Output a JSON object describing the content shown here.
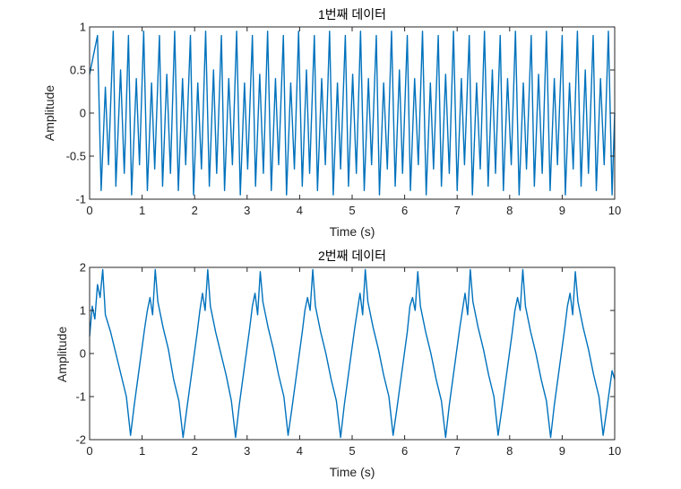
{
  "chart_data": [
    {
      "type": "line",
      "title": "1번째 데이터",
      "xlabel": "Time (s)",
      "ylabel": "Amplitude",
      "xlim": [
        0,
        10
      ],
      "ylim": [
        -1,
        1
      ],
      "xticks": [
        0,
        1,
        2,
        3,
        4,
        5,
        6,
        7,
        8,
        9,
        10
      ],
      "yticks": [
        -1,
        -0.5,
        0,
        0.5,
        1
      ],
      "ytick_labels": [
        "-1",
        "-0.5",
        "0",
        "0.5",
        "1"
      ],
      "grid": false,
      "legend": "none",
      "series": [
        {
          "color": "#0072BD",
          "description": "noisy sawtooth-like oscillation, ~1.7 cycles per second, clipped to [-1, 1]",
          "x": [
            0,
            0.15,
            0.22,
            0.3,
            0.36,
            0.45,
            0.5,
            0.59,
            0.66,
            0.74,
            0.8,
            0.89,
            0.95,
            1.03,
            1.1,
            1.18,
            1.24,
            1.33,
            1.39,
            1.47,
            1.54,
            1.62,
            1.69,
            1.77,
            1.83,
            1.92,
            1.98,
            2.06,
            2.13,
            2.21,
            2.28,
            2.36,
            2.42,
            2.51,
            2.57,
            2.65,
            2.72,
            2.8,
            2.87,
            2.95,
            3.01,
            3.1,
            3.16,
            3.24,
            3.31,
            3.39,
            3.46,
            3.54,
            3.6,
            3.69,
            3.75,
            3.83,
            3.9,
            3.98,
            4.05,
            4.13,
            4.19,
            4.28,
            4.34,
            4.42,
            4.49,
            4.57,
            4.64,
            4.72,
            4.78,
            4.87,
            4.93,
            5.01,
            5.08,
            5.16,
            5.23,
            5.31,
            5.37,
            5.46,
            5.52,
            5.6,
            5.67,
            5.75,
            5.82,
            5.9,
            5.96,
            6.05,
            6.11,
            6.19,
            6.26,
            6.34,
            6.41,
            6.49,
            6.55,
            6.64,
            6.7,
            6.78,
            6.85,
            6.93,
            7.0,
            7.08,
            7.14,
            7.23,
            7.29,
            7.37,
            7.44,
            7.52,
            7.59,
            7.67,
            7.73,
            7.82,
            7.88,
            7.96,
            8.03,
            8.11,
            8.18,
            8.26,
            8.32,
            8.41,
            8.47,
            8.55,
            8.62,
            8.7,
            8.77,
            8.85,
            8.91,
            9.0,
            9.06,
            9.14,
            9.21,
            9.29,
            9.36,
            9.44,
            9.5,
            9.59,
            9.65,
            9.73,
            9.8,
            9.88,
            9.95,
            10
          ],
          "y": [
            0.45,
            0.9,
            -0.9,
            0.3,
            -0.6,
            0.95,
            -0.85,
            0.5,
            -0.7,
            0.9,
            -0.95,
            0.4,
            -0.6,
            0.95,
            -0.9,
            0.35,
            -0.65,
            0.9,
            -0.85,
            0.45,
            -0.7,
            0.95,
            -0.9,
            0.4,
            -0.6,
            0.9,
            -0.95,
            0.35,
            -0.65,
            0.95,
            -0.85,
            0.5,
            -0.7,
            0.9,
            -0.9,
            0.4,
            -0.6,
            0.95,
            -0.95,
            0.35,
            -0.65,
            0.9,
            -0.85,
            0.45,
            -0.7,
            0.95,
            -0.9,
            0.4,
            -0.6,
            0.9,
            -0.95,
            0.35,
            -0.65,
            0.95,
            -0.85,
            0.5,
            -0.7,
            0.9,
            -0.9,
            0.4,
            -0.6,
            0.95,
            -0.95,
            0.35,
            -0.65,
            0.9,
            -0.85,
            0.45,
            -0.7,
            0.95,
            -0.9,
            0.4,
            -0.6,
            0.9,
            -0.95,
            0.35,
            -0.65,
            0.95,
            -0.85,
            0.5,
            -0.7,
            0.9,
            -0.9,
            0.4,
            -0.6,
            0.95,
            -0.95,
            0.35,
            -0.65,
            0.9,
            -0.85,
            0.45,
            -0.7,
            0.95,
            -0.9,
            0.4,
            -0.6,
            0.9,
            -0.95,
            0.35,
            -0.65,
            0.95,
            -0.85,
            0.5,
            -0.7,
            0.9,
            -0.9,
            0.4,
            -0.6,
            0.95,
            -0.95,
            0.35,
            -0.65,
            0.9,
            -0.85,
            0.45,
            -0.7,
            0.95,
            -0.9,
            0.4,
            -0.6,
            0.9,
            -0.95,
            0.35,
            -0.65,
            0.95,
            -0.85,
            0.5,
            -0.7,
            0.9,
            -0.9,
            0.4,
            -0.6,
            0.95,
            -0.95,
            0.0
          ]
        }
      ]
    },
    {
      "type": "line",
      "title": "2번째 데이터",
      "xlabel": "Time (s)",
      "ylabel": "Amplitude",
      "xlim": [
        0,
        10
      ],
      "ylim": [
        -2,
        2
      ],
      "xticks": [
        0,
        1,
        2,
        3,
        4,
        5,
        6,
        7,
        8,
        9,
        10
      ],
      "yticks": [
        -2,
        -1,
        0,
        1,
        2
      ],
      "ytick_labels": [
        "-2",
        "-1",
        "0",
        "1",
        "2"
      ],
      "grid": false,
      "legend": "none",
      "series": [
        {
          "color": "#0072BD",
          "description": "noisy sawtooth wave, period 1 s, peak near +2 at ~0.25 s, trough near -2 at ~0.8 s",
          "x": [
            0,
            0.05,
            0.1,
            0.15,
            0.2,
            0.25,
            0.3,
            0.4,
            0.5,
            0.6,
            0.7,
            0.78,
            0.85,
            0.95,
            1.05,
            1.1,
            1.15,
            1.2,
            1.25,
            1.3,
            1.4,
            1.5,
            1.6,
            1.7,
            1.78,
            1.85,
            1.95,
            2.05,
            2.1,
            2.15,
            2.2,
            2.25,
            2.3,
            2.4,
            2.5,
            2.6,
            2.7,
            2.78,
            2.85,
            2.95,
            3.05,
            3.1,
            3.15,
            3.2,
            3.25,
            3.3,
            3.4,
            3.5,
            3.6,
            3.7,
            3.78,
            3.85,
            3.95,
            4.05,
            4.1,
            4.15,
            4.2,
            4.25,
            4.3,
            4.4,
            4.5,
            4.6,
            4.7,
            4.78,
            4.85,
            4.95,
            5.05,
            5.1,
            5.15,
            5.2,
            5.25,
            5.3,
            5.4,
            5.5,
            5.6,
            5.7,
            5.78,
            5.85,
            5.95,
            6.05,
            6.1,
            6.15,
            6.2,
            6.25,
            6.3,
            6.4,
            6.5,
            6.6,
            6.7,
            6.78,
            6.85,
            6.95,
            7.05,
            7.1,
            7.15,
            7.2,
            7.25,
            7.3,
            7.4,
            7.5,
            7.6,
            7.7,
            7.78,
            7.85,
            7.95,
            8.05,
            8.1,
            8.15,
            8.2,
            8.25,
            8.3,
            8.4,
            8.5,
            8.6,
            8.7,
            8.78,
            8.85,
            8.95,
            9.05,
            9.1,
            9.15,
            9.2,
            9.25,
            9.3,
            9.4,
            9.5,
            9.6,
            9.7,
            9.78,
            9.85,
            9.95,
            10
          ],
          "y": [
            0.4,
            1.1,
            0.8,
            1.6,
            1.3,
            1.95,
            0.9,
            0.5,
            0.0,
            -0.5,
            -1.0,
            -1.9,
            -1.2,
            -0.3,
            0.6,
            1.0,
            1.3,
            0.9,
            1.95,
            1.2,
            0.6,
            0.1,
            -0.6,
            -1.1,
            -1.95,
            -1.3,
            -0.4,
            0.5,
            1.0,
            1.4,
            1.0,
            1.95,
            1.1,
            0.5,
            0.0,
            -0.5,
            -1.1,
            -1.95,
            -1.2,
            -0.3,
            0.6,
            1.1,
            1.4,
            0.9,
            1.9,
            1.2,
            0.6,
            0.1,
            -0.5,
            -1.0,
            -1.9,
            -1.3,
            -0.4,
            0.5,
            1.0,
            1.3,
            1.0,
            1.95,
            1.1,
            0.5,
            0.0,
            -0.6,
            -1.1,
            -1.95,
            -1.2,
            -0.3,
            0.6,
            1.0,
            1.4,
            0.9,
            1.95,
            1.2,
            0.6,
            0.1,
            -0.5,
            -1.0,
            -1.9,
            -1.3,
            -0.4,
            0.5,
            1.1,
            1.3,
            1.0,
            1.9,
            1.1,
            0.5,
            0.0,
            -0.6,
            -1.1,
            -1.95,
            -1.2,
            -0.3,
            0.6,
            1.0,
            1.4,
            0.9,
            1.95,
            1.2,
            0.6,
            0.1,
            -0.5,
            -1.0,
            -1.9,
            -1.3,
            -0.4,
            0.5,
            1.0,
            1.3,
            1.0,
            1.95,
            1.1,
            0.5,
            0.0,
            -0.6,
            -1.1,
            -1.95,
            -1.2,
            -0.3,
            0.6,
            1.1,
            1.4,
            0.9,
            1.9,
            1.2,
            0.6,
            0.1,
            -0.5,
            -1.0,
            -1.9,
            -1.3,
            -0.4,
            -0.6
          ]
        }
      ]
    }
  ]
}
